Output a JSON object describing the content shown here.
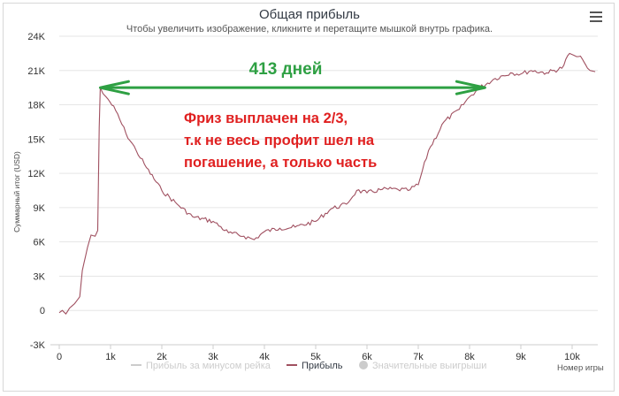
{
  "header": {
    "title": "Общая прибыль",
    "subtitle": "Чтобы увеличить изображение, кликните и перетащите мышкой внутрь графика."
  },
  "menu": {
    "icon": "hamburger-menu-icon"
  },
  "chart_data": {
    "type": "line",
    "xlabel": "Номер игры",
    "ylabel": "Суммарный итог (USD)",
    "xlim": [
      0,
      10500
    ],
    "ylim": [
      -3000,
      24000
    ],
    "x_ticks": [
      "0",
      "1k",
      "2k",
      "3k",
      "4k",
      "5k",
      "6k",
      "7k",
      "8k",
      "9k",
      "10k"
    ],
    "x_tick_values": [
      0,
      1000,
      2000,
      3000,
      4000,
      5000,
      6000,
      7000,
      8000,
      9000,
      10000
    ],
    "y_ticks": [
      "-3K",
      "0",
      "3K",
      "6K",
      "9K",
      "12K",
      "15K",
      "18K",
      "21K",
      "24K"
    ],
    "y_tick_values": [
      -3000,
      0,
      3000,
      6000,
      9000,
      12000,
      15000,
      18000,
      21000,
      24000
    ],
    "grid": "horizontal",
    "legend_position": "bottom",
    "legend": [
      {
        "name": "Прибыль за минусом рейка",
        "color": "#cccccc",
        "marker": "line",
        "active": false
      },
      {
        "name": "Прибыль",
        "color": "#a05060",
        "marker": "line",
        "active": true
      },
      {
        "name": "Значительные выигрыши",
        "color": "#cccccc",
        "marker": "circle",
        "active": false
      }
    ],
    "series": [
      {
        "name": "Прибыль",
        "color": "#a05060",
        "x": [
          0,
          60,
          130,
          200,
          300,
          400,
          450,
          550,
          620,
          700,
          750,
          780,
          800,
          850,
          950,
          1100,
          1300,
          1500,
          1700,
          2000,
          2300,
          2600,
          3000,
          3300,
          3600,
          3800,
          4000,
          4300,
          4600,
          5000,
          5300,
          5600,
          5800,
          6000,
          6300,
          6600,
          6800,
          7000,
          7200,
          7500,
          7800,
          8000,
          8200,
          8500,
          8800,
          9000,
          9200,
          9500,
          9800,
          9950,
          10050,
          10200,
          10300,
          10350,
          10450
        ],
        "y": [
          -200,
          0,
          -300,
          200,
          600,
          1200,
          3500,
          5500,
          6600,
          6500,
          7000,
          16000,
          19500,
          19000,
          18500,
          17500,
          15500,
          14000,
          12500,
          10500,
          9300,
          8200,
          7800,
          6800,
          6500,
          6200,
          6900,
          7200,
          7300,
          7800,
          8900,
          9300,
          10500,
          10300,
          10600,
          10600,
          10500,
          11000,
          14000,
          16500,
          17600,
          18700,
          19500,
          20300,
          20800,
          20700,
          21000,
          20800,
          21200,
          22500,
          22300,
          22000,
          21200,
          21000,
          20900
        ]
      }
    ],
    "annotations": [
      {
        "type": "text",
        "text": "413 дней",
        "color": "#2ea043"
      },
      {
        "type": "text",
        "text": "Фриз выплачен на 2/3,",
        "color": "#e02020"
      },
      {
        "type": "text",
        "text": "т.к не весь профит шел на",
        "color": "#e02020"
      },
      {
        "type": "text",
        "text": "погашение, а только часть",
        "color": "#e02020"
      },
      {
        "type": "double-arrow",
        "from_x": 800,
        "to_x": 8300,
        "y": 19500,
        "color": "#2ea043"
      }
    ]
  }
}
